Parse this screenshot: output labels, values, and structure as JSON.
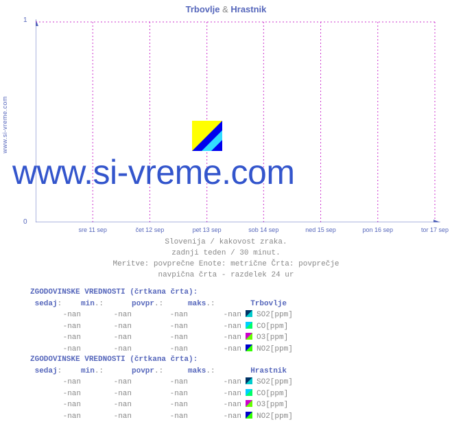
{
  "title": {
    "loc1": "Trbovlje",
    "amp": "&",
    "loc2": "Hrastnik"
  },
  "side_url": "www.si-vreme.com",
  "watermark": "www.si-vreme.com",
  "chart": {
    "type": "line",
    "background_color": "#ffffff",
    "grid_color": "#cc33cc",
    "grid_dash": "2 3",
    "axis_color": "#5566bb",
    "ylim": [
      0,
      1
    ],
    "yticks": [
      0,
      1
    ],
    "x_labels": [
      "sre 11 sep",
      "čet 12 sep",
      "pet 13 sep",
      "sob 14 sep",
      "ned 15 sep",
      "pon 16 sep",
      "tor 17 sep"
    ],
    "x_positions_pct": [
      14.3,
      28.6,
      42.9,
      57.1,
      71.4,
      85.7,
      100
    ],
    "series": []
  },
  "caption": {
    "l1": "Slovenija / kakovost zraka.",
    "l2": "zadnji teden / 30 minut.",
    "l3": "Meritve: povprečne  Enote: metrične  Črta: povprečje",
    "l4": "navpična črta - razdelek 24 ur"
  },
  "htable_header": "ZGODOVINSKE VREDNOSTI (črtkana črta):",
  "columns": {
    "sedaj": "sedaj",
    "min": "min",
    "povpr": "povpr",
    "maks": "maks"
  },
  "stations": [
    {
      "name": "Trbovlje",
      "rows": [
        {
          "sedaj": "-nan",
          "min": "-nan",
          "povpr": "-nan",
          "maks": "-nan",
          "swatch_bg": "#003366",
          "swatch_tri": "#00cccc",
          "label": "SO2[ppm]"
        },
        {
          "sedaj": "-nan",
          "min": "-nan",
          "povpr": "-nan",
          "maks": "-nan",
          "swatch_bg": "#00ccff",
          "swatch_tri": "#00ff66",
          "label": "CO[ppm]"
        },
        {
          "sedaj": "-nan",
          "min": "-nan",
          "povpr": "-nan",
          "maks": "-nan",
          "swatch_bg": "#cc00cc",
          "swatch_tri": "#66ff00",
          "label": "O3[ppm]"
        },
        {
          "sedaj": "-nan",
          "min": "-nan",
          "povpr": "-nan",
          "maks": "-nan",
          "swatch_bg": "#0000cc",
          "swatch_tri": "#33ff00",
          "label": "NO2[ppm]"
        }
      ]
    },
    {
      "name": "Hrastnik",
      "rows": [
        {
          "sedaj": "-nan",
          "min": "-nan",
          "povpr": "-nan",
          "maks": "-nan",
          "swatch_bg": "#003366",
          "swatch_tri": "#00cccc",
          "label": "SO2[ppm]"
        },
        {
          "sedaj": "-nan",
          "min": "-nan",
          "povpr": "-nan",
          "maks": "-nan",
          "swatch_bg": "#00ccff",
          "swatch_tri": "#00ff66",
          "label": "CO[ppm]"
        },
        {
          "sedaj": "-nan",
          "min": "-nan",
          "povpr": "-nan",
          "maks": "-nan",
          "swatch_bg": "#cc00cc",
          "swatch_tri": "#66ff00",
          "label": "O3[ppm]"
        },
        {
          "sedaj": "-nan",
          "min": "-nan",
          "povpr": "-nan",
          "maks": "-nan",
          "swatch_bg": "#0000cc",
          "swatch_tri": "#33ff00",
          "label": "NO2[ppm]"
        }
      ]
    }
  ]
}
